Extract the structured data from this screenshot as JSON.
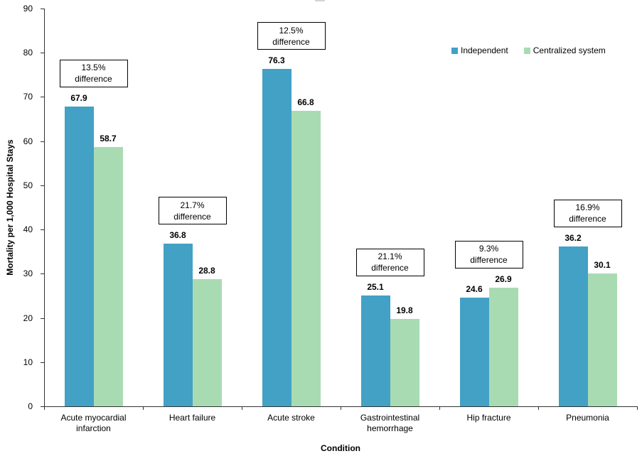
{
  "chart_data": {
    "type": "bar",
    "title": "",
    "xlabel": "Condition",
    "ylabel": "Mortality per 1,000 Hospital Stays",
    "ylim": [
      0,
      90
    ],
    "ytick_interval": 10,
    "grid": false,
    "legend_position": "top-right",
    "categories": [
      "Acute myocardial infarction",
      "Heart failure",
      "Acute stroke",
      "Gastrointestinal hemorrhage",
      "Hip fracture",
      "Pneumonia"
    ],
    "series": [
      {
        "name": "Independent",
        "color": "#42A1C5",
        "values": [
          67.9,
          36.8,
          76.3,
          25.1,
          24.6,
          36.2
        ]
      },
      {
        "name": "Centralized system",
        "color": "#A9DBB3",
        "values": [
          58.7,
          28.8,
          66.8,
          19.8,
          26.9,
          30.1
        ]
      }
    ],
    "annotations": [
      {
        "line1": "13.5%",
        "line2": "difference"
      },
      {
        "line1": "21.7%",
        "line2": "difference"
      },
      {
        "line1": "12.5%",
        "line2": "difference"
      },
      {
        "line1": "21.1%",
        "line2": "difference"
      },
      {
        "line1": "9.3%",
        "line2": "difference"
      },
      {
        "line1": "16.9%",
        "line2": "difference"
      }
    ]
  }
}
